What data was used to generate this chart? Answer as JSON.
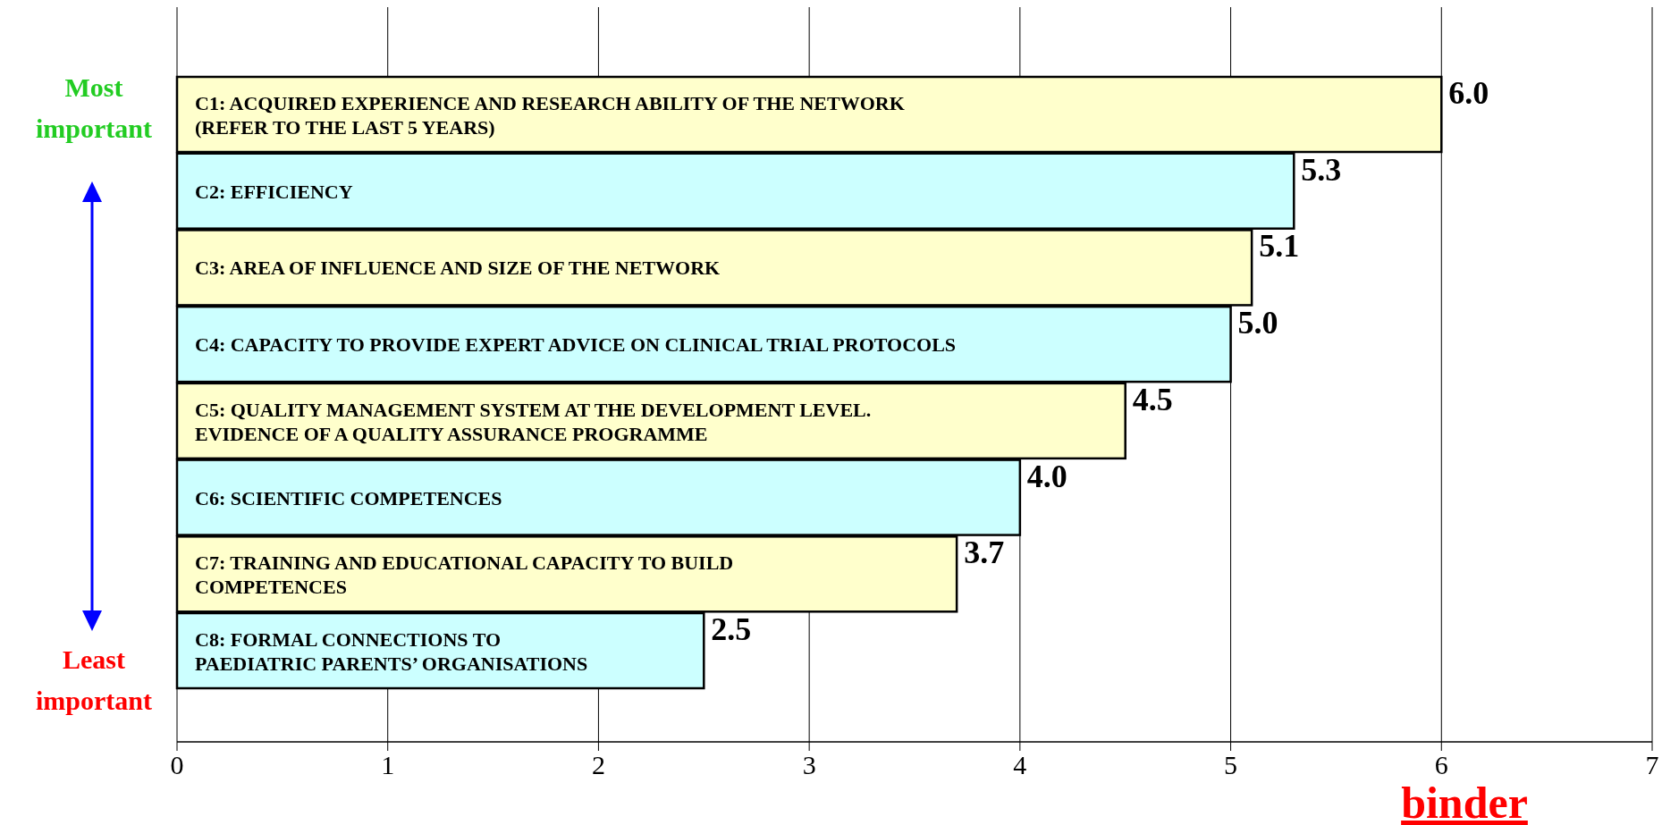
{
  "chart_data": {
    "type": "bar",
    "orientation": "horizontal",
    "categories": [
      "C1: ACQUIRED EXPERIENCE AND RESEARCH ABILITY OF THE NETWORK\n(REFER TO THE LAST 5 YEARS)",
      "C2: EFFICIENCY",
      "C3: AREA OF INFLUENCE AND SIZE OF THE NETWORK",
      "C4: CAPACITY TO PROVIDE EXPERT ADVICE ON CLINICAL TRIAL PROTOCOLS",
      "C5: QUALITY MANAGEMENT SYSTEM AT THE DEVELOPMENT LEVEL.\nEVIDENCE OF A QUALITY ASSURANCE PROGRAMME",
      "C6: SCIENTIFIC COMPETENCES",
      "C7: TRAINING AND EDUCATIONAL CAPACITY TO BUILD\nCOMPETENCES",
      "C8: FORMAL CONNECTIONS TO\nPAEDIATRIC PARENTS’ ORGANISATIONS"
    ],
    "values": [
      6.0,
      5.3,
      5.1,
      5.0,
      4.5,
      4.0,
      3.7,
      2.5
    ],
    "colors": [
      "#ffffcc",
      "#ccffff",
      "#ffffcc",
      "#ccffff",
      "#ffffcc",
      "#ccffff",
      "#ffffcc",
      "#ccffff"
    ],
    "xlim": [
      0,
      7
    ],
    "xticks": [
      0,
      1,
      2,
      3,
      4,
      5,
      6,
      7
    ],
    "value_labels": [
      "6.0",
      "5.3",
      "5.1",
      "5.0",
      "4.5",
      "4.0",
      "3.7",
      "2.5"
    ],
    "grid": "x",
    "annotations": [
      "Most\nimportant",
      "Least\nimportant",
      "binder"
    ]
  }
}
